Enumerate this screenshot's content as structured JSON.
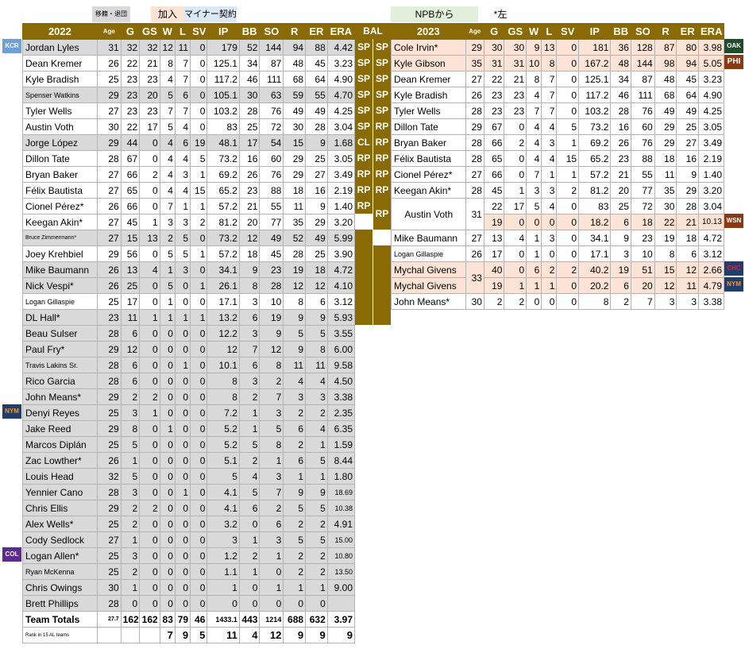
{
  "legend": {
    "transferred": "移籍・退団",
    "added": "加入",
    "minor": "マイナー契約",
    "npb": "NPBから",
    "left_note": "*左"
  },
  "colors": {
    "header": "#8a6a05",
    "gray": "#d9d9d9",
    "pink": "#fbe4d5",
    "blue_legend": "#dde8f5",
    "green_legend": "#e2efda"
  },
  "team_tags": {
    "kcr": "KCR",
    "nym": "NYM",
    "col": "COL",
    "oak": "OAK",
    "phi": "PHI",
    "wsn": "WSN",
    "chc": "CHC",
    "nym2": "NYM"
  },
  "left": {
    "year": "2022",
    "cols": [
      "Age",
      "G",
      "GS",
      "W",
      "L",
      "SV",
      "IP",
      "BB",
      "SO",
      "R",
      "ER",
      "ERA"
    ],
    "rows": [
      [
        "Jordan Lyles",
        "31",
        "32",
        "32",
        "12",
        "11",
        "0",
        "179",
        "52",
        "144",
        "94",
        "88",
        "4.42"
      ],
      [
        "Dean Kremer",
        "26",
        "22",
        "21",
        "8",
        "7",
        "0",
        "125.1",
        "34",
        "87",
        "48",
        "45",
        "3.23"
      ],
      [
        "Kyle Bradish",
        "25",
        "23",
        "23",
        "4",
        "7",
        "0",
        "117.2",
        "46",
        "111",
        "68",
        "64",
        "4.90"
      ],
      [
        "Spenser Watkins",
        "29",
        "23",
        "20",
        "5",
        "6",
        "0",
        "105.1",
        "30",
        "63",
        "59",
        "55",
        "4.70"
      ],
      [
        "Tyler Wells",
        "27",
        "23",
        "23",
        "7",
        "7",
        "0",
        "103.2",
        "28",
        "76",
        "49",
        "49",
        "4.25"
      ],
      [
        "Austin Voth",
        "30",
        "22",
        "17",
        "5",
        "4",
        "0",
        "83",
        "25",
        "72",
        "30",
        "28",
        "3.04"
      ],
      [
        "Jorge López",
        "29",
        "44",
        "0",
        "4",
        "6",
        "19",
        "48.1",
        "17",
        "54",
        "15",
        "9",
        "1.68"
      ],
      [
        "Dillon Tate",
        "28",
        "67",
        "0",
        "4",
        "4",
        "5",
        "73.2",
        "16",
        "60",
        "29",
        "25",
        "3.05"
      ],
      [
        "Bryan Baker",
        "27",
        "66",
        "2",
        "4",
        "3",
        "1",
        "69.2",
        "26",
        "76",
        "29",
        "27",
        "3.49"
      ],
      [
        "Félix Bautista",
        "27",
        "65",
        "0",
        "4",
        "4",
        "15",
        "65.2",
        "23",
        "88",
        "18",
        "16",
        "2.19"
      ],
      [
        "Cionel Pérez*",
        "26",
        "66",
        "0",
        "7",
        "1",
        "1",
        "57.2",
        "21",
        "55",
        "11",
        "9",
        "1.40"
      ],
      [
        "Keegan Akin*",
        "27",
        "45",
        "1",
        "3",
        "3",
        "2",
        "81.2",
        "20",
        "77",
        "35",
        "29",
        "3.20"
      ],
      [
        "Bruce Zimmermann*",
        "27",
        "15",
        "13",
        "2",
        "5",
        "0",
        "73.2",
        "12",
        "49",
        "52",
        "49",
        "5.99"
      ],
      [
        "Joey Krehbiel",
        "29",
        "56",
        "0",
        "5",
        "5",
        "1",
        "57.2",
        "18",
        "45",
        "28",
        "25",
        "3.90"
      ],
      [
        "Mike Baumann",
        "26",
        "13",
        "4",
        "1",
        "3",
        "0",
        "34.1",
        "9",
        "23",
        "19",
        "18",
        "4.72"
      ],
      [
        "Nick Vespi*",
        "26",
        "25",
        "0",
        "5",
        "0",
        "1",
        "26.1",
        "8",
        "28",
        "12",
        "12",
        "4.10"
      ],
      [
        "Logan Gillaspie",
        "25",
        "17",
        "0",
        "1",
        "0",
        "0",
        "17.1",
        "3",
        "10",
        "8",
        "6",
        "3.12"
      ],
      [
        "DL Hall*",
        "23",
        "11",
        "1",
        "1",
        "1",
        "1",
        "13.2",
        "6",
        "19",
        "9",
        "9",
        "5.93"
      ],
      [
        "Beau Sulser",
        "28",
        "6",
        "0",
        "0",
        "0",
        "0",
        "12.2",
        "3",
        "9",
        "5",
        "5",
        "3.55"
      ],
      [
        "Paul Fry*",
        "29",
        "12",
        "0",
        "0",
        "0",
        "0",
        "12",
        "7",
        "12",
        "9",
        "8",
        "6.00"
      ],
      [
        "Travis Lakins Sr.",
        "28",
        "6",
        "0",
        "0",
        "1",
        "0",
        "10.1",
        "6",
        "8",
        "11",
        "11",
        "9.58"
      ],
      [
        "Rico Garcia",
        "28",
        "6",
        "0",
        "0",
        "0",
        "0",
        "8",
        "3",
        "2",
        "4",
        "4",
        "4.50"
      ],
      [
        "John Means*",
        "29",
        "2",
        "2",
        "0",
        "0",
        "0",
        "8",
        "2",
        "7",
        "3",
        "3",
        "3.38"
      ],
      [
        "Denyi Reyes",
        "25",
        "3",
        "1",
        "0",
        "0",
        "0",
        "7.2",
        "1",
        "3",
        "2",
        "2",
        "2.35"
      ],
      [
        "Jake Reed",
        "29",
        "8",
        "0",
        "1",
        "0",
        "0",
        "5.2",
        "1",
        "5",
        "6",
        "4",
        "6.35"
      ],
      [
        "Marcos Diplán",
        "25",
        "5",
        "0",
        "0",
        "0",
        "0",
        "5.2",
        "5",
        "8",
        "2",
        "1",
        "1.59"
      ],
      [
        "Zac Lowther*",
        "26",
        "1",
        "0",
        "0",
        "0",
        "0",
        "5.1",
        "2",
        "1",
        "6",
        "5",
        "8.44"
      ],
      [
        "Louis Head",
        "32",
        "5",
        "0",
        "0",
        "0",
        "0",
        "5",
        "4",
        "3",
        "1",
        "1",
        "1.80"
      ],
      [
        "Yennier Cano",
        "28",
        "3",
        "0",
        "0",
        "1",
        "0",
        "4.1",
        "5",
        "7",
        "9",
        "9",
        "18.69"
      ],
      [
        "Chris Ellis",
        "29",
        "2",
        "2",
        "0",
        "0",
        "0",
        "4.1",
        "6",
        "2",
        "5",
        "5",
        "10.38"
      ],
      [
        "Alex Wells*",
        "25",
        "2",
        "0",
        "0",
        "0",
        "0",
        "3.2",
        "0",
        "6",
        "2",
        "2",
        "4.91"
      ],
      [
        "Cody Sedlock",
        "27",
        "1",
        "0",
        "0",
        "0",
        "0",
        "3",
        "1",
        "3",
        "5",
        "5",
        "15.00"
      ],
      [
        "Logan Allen*",
        "25",
        "3",
        "0",
        "0",
        "0",
        "0",
        "1.2",
        "2",
        "1",
        "2",
        "2",
        "10.80"
      ],
      [
        "Ryan McKenna",
        "25",
        "2",
        "0",
        "0",
        "0",
        "0",
        "1.1",
        "1",
        "0",
        "2",
        "2",
        "13.50"
      ],
      [
        "Chris Owings",
        "30",
        "1",
        "0",
        "0",
        "0",
        "0",
        "1",
        "0",
        "1",
        "1",
        "1",
        "9.00"
      ],
      [
        "Brett Phillips",
        "28",
        "0",
        "0",
        "0",
        "0",
        "0",
        "0",
        "0",
        "0",
        "0",
        "0",
        ""
      ]
    ],
    "totals": [
      "Team Totals",
      "27.7",
      "162",
      "162",
      "83",
      "79",
      "46",
      "1433.1",
      "443",
      "1214",
      "688",
      "632",
      "3.97"
    ],
    "rank": [
      "Rank in 15 AL teams",
      "",
      "",
      "",
      "7",
      "9",
      "5",
      "11",
      "4",
      "12",
      "9",
      "9",
      "9"
    ]
  },
  "roles_header": "BAL",
  "roles_left": [
    "SP",
    "SP",
    "SP",
    "SP",
    "SP",
    "SP",
    "CL",
    "RP",
    "RP",
    "RP",
    "RP"
  ],
  "roles_right": [
    "SP",
    "SP",
    "SP",
    "SP",
    "SP",
    "RP",
    "RP",
    "RP",
    "RP",
    "RP",
    "RP"
  ],
  "right": {
    "year": "2023",
    "cols": [
      "Age",
      "G",
      "GS",
      "W",
      "L",
      "SV",
      "IP",
      "BB",
      "SO",
      "R",
      "ER",
      "ERA"
    ],
    "rows": [
      [
        "Cole Irvin*",
        "29",
        "30",
        "30",
        "9",
        "13",
        "0",
        "181",
        "36",
        "128",
        "87",
        "80",
        "3.98"
      ],
      [
        "Kyle Gibson",
        "35",
        "31",
        "31",
        "10",
        "8",
        "0",
        "167.2",
        "48",
        "144",
        "98",
        "94",
        "5.05"
      ],
      [
        "Dean Kremer",
        "27",
        "22",
        "21",
        "8",
        "7",
        "0",
        "125.1",
        "34",
        "87",
        "48",
        "45",
        "3.23"
      ],
      [
        "Kyle Bradish",
        "26",
        "23",
        "23",
        "4",
        "7",
        "0",
        "117.2",
        "46",
        "111",
        "68",
        "64",
        "4.90"
      ],
      [
        "Tyler Wells",
        "28",
        "23",
        "23",
        "7",
        "7",
        "0",
        "103.2",
        "28",
        "76",
        "49",
        "49",
        "4.25"
      ],
      [
        "Dillon Tate",
        "29",
        "67",
        "0",
        "4",
        "4",
        "5",
        "73.2",
        "16",
        "60",
        "29",
        "25",
        "3.05"
      ],
      [
        "Bryan Baker",
        "28",
        "66",
        "2",
        "4",
        "3",
        "1",
        "69.2",
        "26",
        "76",
        "29",
        "27",
        "3.49"
      ],
      [
        "Félix Bautista",
        "28",
        "65",
        "0",
        "4",
        "4",
        "15",
        "65.2",
        "23",
        "88",
        "18",
        "16",
        "2.19"
      ],
      [
        "Cionel Pérez*",
        "27",
        "66",
        "0",
        "7",
        "1",
        "1",
        "57.2",
        "21",
        "55",
        "11",
        "9",
        "1.40"
      ],
      [
        "Keegan Akin*",
        "28",
        "45",
        "1",
        "3",
        "3",
        "2",
        "81.2",
        "20",
        "77",
        "35",
        "29",
        "3.20"
      ]
    ],
    "voth": {
      "name": "Austin Voth",
      "age": "31",
      "a": [
        "22",
        "17",
        "5",
        "4",
        "0",
        "83",
        "25",
        "72",
        "30",
        "28",
        "3.04"
      ],
      "b": [
        "19",
        "0",
        "0",
        "0",
        "0",
        "18.2",
        "6",
        "18",
        "22",
        "21",
        "10.13"
      ]
    },
    "rows2": [
      [
        "Mike Baumann",
        "27",
        "13",
        "4",
        "1",
        "3",
        "0",
        "34.1",
        "9",
        "23",
        "19",
        "18",
        "4.72"
      ],
      [
        "Logan Gillaspie",
        "26",
        "17",
        "0",
        "1",
        "0",
        "0",
        "17.1",
        "3",
        "10",
        "8",
        "6",
        "3.12"
      ]
    ],
    "givens": {
      "name": "Mychal Givens",
      "age": "33",
      "a": [
        "40",
        "0",
        "6",
        "2",
        "2",
        "40.2",
        "19",
        "51",
        "15",
        "12",
        "2.66"
      ],
      "b": [
        "19",
        "1",
        "1",
        "1",
        "0",
        "20.2",
        "6",
        "20",
        "12",
        "11",
        "4.79"
      ]
    },
    "means": [
      "John Means*",
      "30",
      "2",
      "2",
      "0",
      "0",
      "0",
      "8",
      "2",
      "7",
      "3",
      "3",
      "3.38"
    ]
  }
}
